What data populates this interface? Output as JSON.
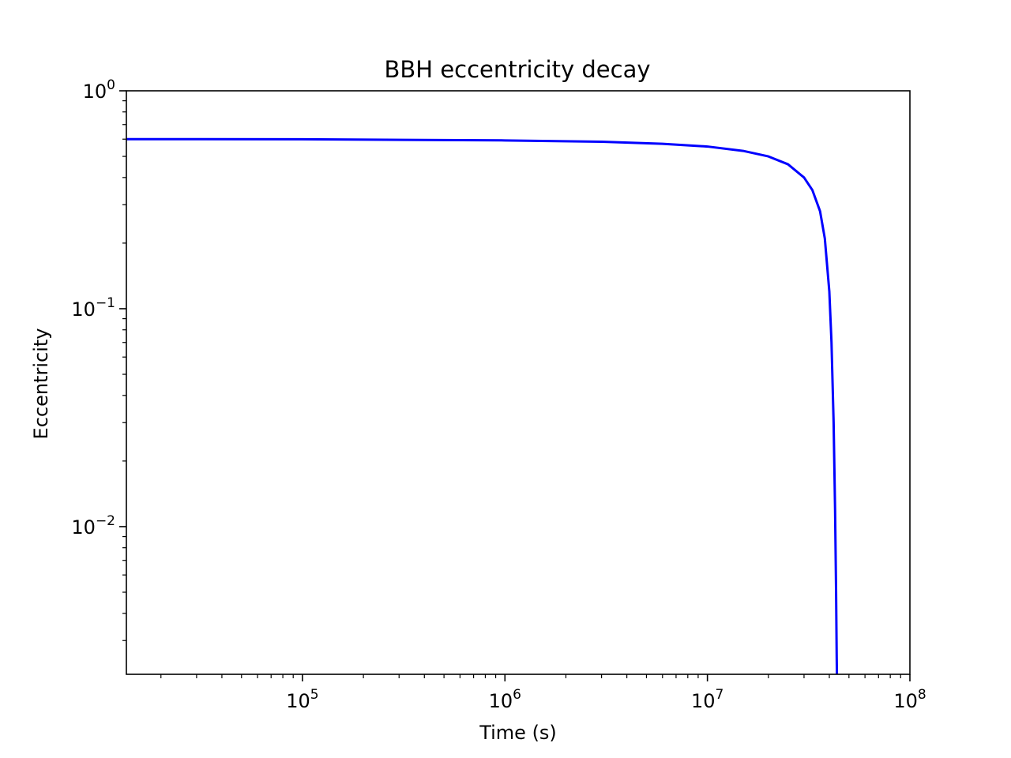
{
  "chart_data": {
    "type": "line",
    "title": "BBH eccentricity decay",
    "xlabel": "Time (s)",
    "ylabel": "Eccentricity",
    "xscale": "log",
    "yscale": "log",
    "xlim": [
      13500,
      100000000
    ],
    "ylim": [
      0.0021,
      1
    ],
    "x_ticks": [
      {
        "value": 100000,
        "base": "10",
        "exp": "5"
      },
      {
        "value": 1000000,
        "base": "10",
        "exp": "6"
      },
      {
        "value": 10000000,
        "base": "10",
        "exp": "7"
      },
      {
        "value": 100000000,
        "base": "10",
        "exp": "8"
      }
    ],
    "y_ticks": [
      {
        "value": 1,
        "base": "10",
        "exp": "0"
      },
      {
        "value": 0.1,
        "base": "10",
        "exp": "−1"
      },
      {
        "value": 0.01,
        "base": "10",
        "exp": "−2"
      }
    ],
    "grid": false,
    "legend": "none",
    "series": [
      {
        "color": "#0000ff",
        "x": [
          13500,
          100000,
          1000000,
          3000000,
          6000000,
          10000000,
          15000000,
          20000000,
          25000000,
          30000000,
          33000000,
          36000000,
          38000000,
          40000000,
          41000000,
          42000000,
          42700000,
          43200000,
          43500000,
          43600000,
          43650000
        ],
        "y": [
          0.6,
          0.599,
          0.592,
          0.584,
          0.571,
          0.555,
          0.53,
          0.5,
          0.46,
          0.4,
          0.35,
          0.28,
          0.21,
          0.12,
          0.07,
          0.03,
          0.012,
          0.005,
          0.0025,
          0.0021,
          0.0021
        ]
      }
    ]
  }
}
